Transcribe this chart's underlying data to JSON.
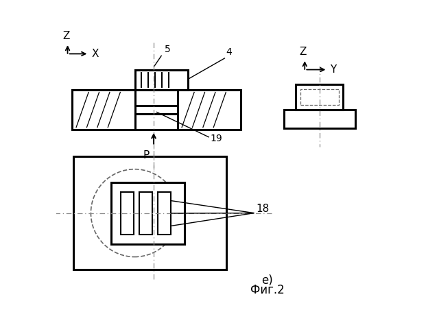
{
  "bg_color": "#ffffff",
  "fig_label": "e)",
  "fig_caption": "Фиг.2",
  "label_4": "4",
  "label_5": "5",
  "label_18": "18",
  "label_19": "19",
  "label_P": "P",
  "label_Z1": "Z",
  "label_X": "X",
  "label_Z2": "Z",
  "label_Y": "Y"
}
